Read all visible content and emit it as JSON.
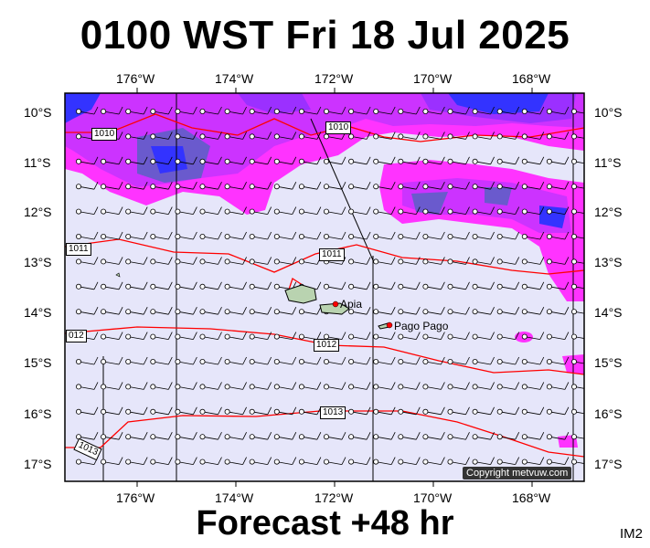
{
  "header": {
    "title": "0100 WST Fri 18 Jul 2025"
  },
  "footer": {
    "forecast": "Forecast +48 hr",
    "tag": "IM2"
  },
  "map": {
    "lon_labels": [
      "176°W",
      "174°W",
      "172°W",
      "170°W",
      "168°W"
    ],
    "lat_labels": [
      "10°S",
      "11°S",
      "12°S",
      "13°S",
      "14°S",
      "15°S",
      "16°S",
      "17°S"
    ],
    "places": [
      {
        "name": "Apia"
      },
      {
        "name": "Pago Pago"
      }
    ],
    "isobars": [
      "1010",
      "1010",
      "1011",
      "1011",
      "012",
      "1012",
      "1013",
      "1013"
    ],
    "copyright": "Copyright metvuw.com",
    "colors": {
      "background": "#e6e6fa",
      "precip_light": "#ff33ff",
      "precip_mid": "#9b30ff",
      "precip_heavy": "#3333ff",
      "isobar": "#ff0000",
      "coast": "#000000"
    }
  }
}
